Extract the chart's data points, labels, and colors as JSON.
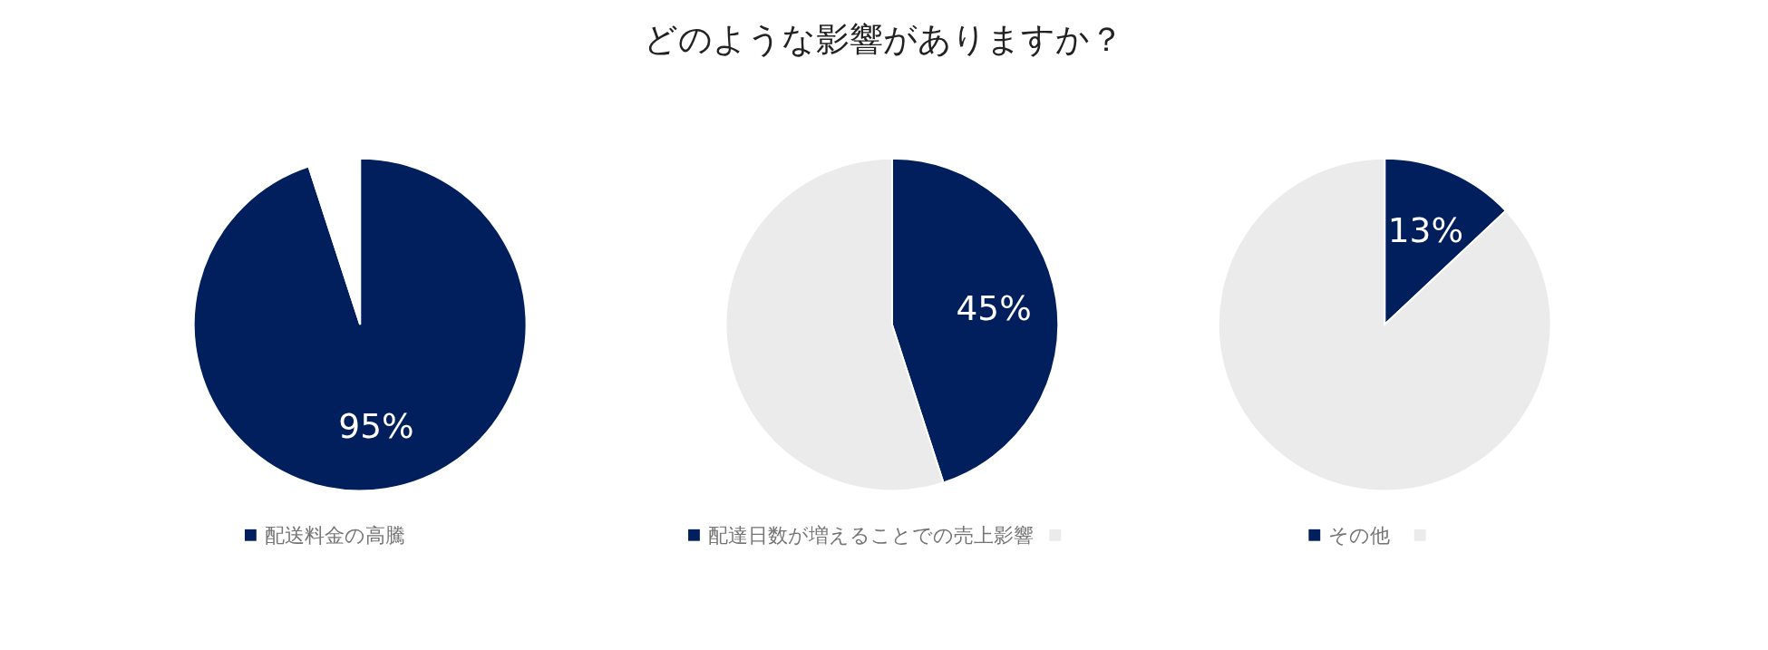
{
  "chart_data": [
    {
      "type": "pie",
      "categories": [
        "配送料金の高騰",
        null
      ],
      "values": [
        95,
        5
      ],
      "colors": [
        "#001f5c",
        "#ffffff"
      ],
      "value_labels": [
        "95%",
        null
      ],
      "legend": "bottom"
    },
    {
      "type": "pie",
      "title": "どのような影響がありますか？",
      "categories": [
        "配達日数が増えることでの売上影響",
        null
      ],
      "values": [
        45,
        55
      ],
      "colors": [
        "#001f5c",
        "#ebebeb"
      ],
      "value_labels": [
        "45%",
        null
      ],
      "legend": "bottom"
    },
    {
      "type": "pie",
      "categories": [
        "その他",
        null
      ],
      "values": [
        13,
        87
      ],
      "colors": [
        "#001f5c",
        "#ebebeb"
      ],
      "value_labels": [
        "13%",
        null
      ],
      "legend": "bottom"
    }
  ]
}
